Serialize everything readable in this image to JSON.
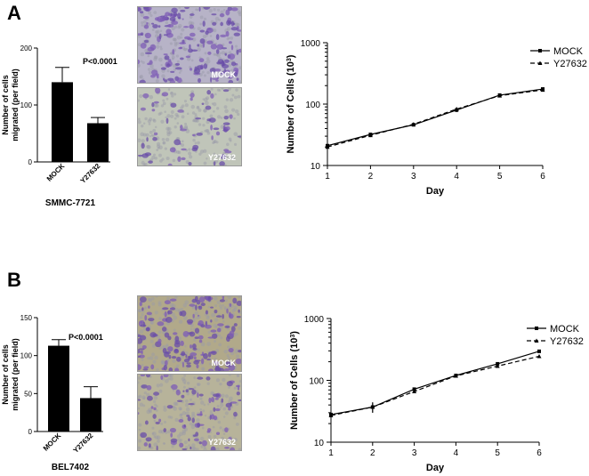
{
  "panels": [
    {
      "letter": "A",
      "bar": {
        "ylabel_line1": "Number of cells",
        "ylabel_line2": "migrated (per field)",
        "pvalue": "P<0.0001",
        "cellline": "SMMC-7721",
        "categories": [
          "MOCK",
          "Y27632"
        ],
        "values": [
          140,
          68
        ],
        "errors": [
          26,
          10
        ],
        "ylim": [
          0,
          200
        ],
        "yticks": [
          0,
          100,
          200
        ]
      },
      "images": [
        {
          "label": "MOCK",
          "tone": "#b7b3c7",
          "density": 170
        },
        {
          "label": "Y27632",
          "tone": "#c0c5b9",
          "density": 60
        }
      ],
      "growth": {
        "xlabel": "Day",
        "ylabel": "Number of Cells (10",
        "ylabel_sup": "3",
        "ylabel_end": ")",
        "x": [
          1,
          2,
          3,
          4,
          5,
          6
        ],
        "series": [
          {
            "name": "MOCK",
            "values": [
              21,
              32,
              46,
              80,
              140,
              176
            ],
            "errors": [
              2,
              2,
              2,
              6,
              4,
              6
            ],
            "dashed": false
          },
          {
            "name": "Y27632",
            "values": [
              20,
              31,
              47,
              83,
              137,
              170
            ],
            "errors": [
              2,
              2,
              2,
              6,
              4,
              6
            ],
            "dashed": true
          }
        ],
        "ylim": [
          10,
          1000
        ],
        "yticks": [
          10,
          100,
          1000
        ],
        "xticks": [
          1,
          2,
          3,
          4,
          5,
          6
        ]
      }
    },
    {
      "letter": "B",
      "bar": {
        "ylabel_line1": "Number of cells",
        "ylabel_line2": "migrated (per field)",
        "pvalue": "P<0.0001",
        "cellline": "BEL7402",
        "categories": [
          "MOCK",
          "Y27632"
        ],
        "values": [
          113,
          44
        ],
        "errors": [
          8,
          15
        ],
        "ylim": [
          0,
          150
        ],
        "yticks": [
          0,
          50,
          100,
          150
        ]
      },
      "images": [
        {
          "label": "MOCK",
          "tone": "#b1a98a",
          "density": 160
        },
        {
          "label": "Y27632",
          "tone": "#b7b39a",
          "density": 90
        }
      ],
      "growth": {
        "xlabel": "Day",
        "ylabel": "Number of Cells (10",
        "ylabel_sup": "3",
        "ylabel_end": ")",
        "x": [
          1,
          2,
          3,
          4,
          5,
          6
        ],
        "series": [
          {
            "name": "MOCK",
            "values": [
              28,
              37,
              72,
              120,
              185,
              295
            ],
            "errors": [
              3,
              7,
              3,
              4,
              6,
              10
            ],
            "dashed": false
          },
          {
            "name": "Y27632",
            "values": [
              27,
              37,
              66,
              118,
              170,
              245
            ],
            "errors": [
              3,
              7,
              3,
              4,
              6,
              10
            ],
            "dashed": true
          }
        ],
        "ylim": [
          10,
          1000
        ],
        "yticks": [
          10,
          100,
          1000
        ],
        "xticks": [
          1,
          2,
          3,
          4,
          5,
          6
        ]
      }
    }
  ],
  "chart_data": [
    {
      "type": "bar",
      "title": "",
      "cellline": "SMMC-7721",
      "ylabel": "Number of cells migrated (per field)",
      "categories": [
        "MOCK",
        "Y27632"
      ],
      "values": [
        140,
        68
      ],
      "errors": [
        26,
        10
      ],
      "ylim": [
        0,
        200
      ],
      "annotation": "P<0.0001"
    },
    {
      "type": "line",
      "xlabel": "Day",
      "ylabel": "Number of Cells (10^3)",
      "yscale": "log",
      "ylim": [
        10,
        1000
      ],
      "x": [
        1,
        2,
        3,
        4,
        5,
        6
      ],
      "series": [
        {
          "name": "MOCK",
          "values": [
            21,
            32,
            46,
            80,
            140,
            176
          ]
        },
        {
          "name": "Y27632",
          "values": [
            20,
            31,
            47,
            83,
            137,
            170
          ]
        }
      ],
      "legend": "top-right"
    },
    {
      "type": "bar",
      "title": "",
      "cellline": "BEL7402",
      "ylabel": "Number of cells migrated (per field)",
      "categories": [
        "MOCK",
        "Y27632"
      ],
      "values": [
        113,
        44
      ],
      "errors": [
        8,
        15
      ],
      "ylim": [
        0,
        150
      ],
      "annotation": "P<0.0001"
    },
    {
      "type": "line",
      "xlabel": "Day",
      "ylabel": "Number of Cells (10^3)",
      "yscale": "log",
      "ylim": [
        10,
        1000
      ],
      "x": [
        1,
        2,
        3,
        4,
        5,
        6
      ],
      "series": [
        {
          "name": "MOCK",
          "values": [
            28,
            37,
            72,
            120,
            185,
            295
          ]
        },
        {
          "name": "Y27632",
          "values": [
            27,
            37,
            66,
            118,
            170,
            245
          ]
        }
      ],
      "legend": "top-right"
    }
  ]
}
